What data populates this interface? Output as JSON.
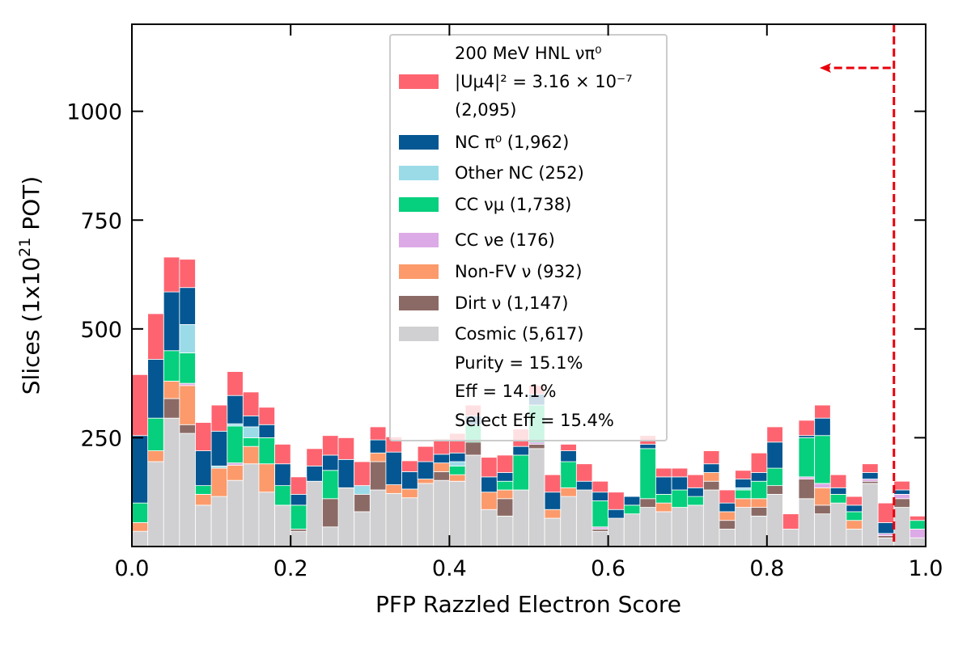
{
  "chart_data": {
    "type": "bar",
    "stacked": true,
    "histogram": true,
    "xlabel": "PFP Razzled Electron Score",
    "ylabel_parts": [
      "Slices (1x10",
      "21",
      " POT)"
    ],
    "xlim": [
      0.0,
      1.0
    ],
    "ylim": [
      0,
      1200
    ],
    "x_ticks": [
      0.0,
      0.2,
      0.4,
      0.6,
      0.8,
      1.0
    ],
    "x_tick_labels": [
      "0.0",
      "0.2",
      "0.4",
      "0.6",
      "0.8",
      "1.0"
    ],
    "y_ticks": [
      250,
      500,
      750,
      1000
    ],
    "y_tick_labels": [
      "250",
      "500",
      "750",
      "1000"
    ],
    "bin_edges": [
      0.0,
      0.02,
      0.04,
      0.06,
      0.08,
      0.1,
      0.12,
      0.14,
      0.16,
      0.18,
      0.2,
      0.22,
      0.24,
      0.26,
      0.28,
      0.3,
      0.32,
      0.34,
      0.36,
      0.38,
      0.4,
      0.42,
      0.44,
      0.46,
      0.48,
      0.5,
      0.52,
      0.54,
      0.56,
      0.58,
      0.6,
      0.62,
      0.64,
      0.66,
      0.68,
      0.7,
      0.72,
      0.74,
      0.76,
      0.78,
      0.8,
      0.82,
      0.84,
      0.86,
      0.88,
      0.9,
      0.92,
      0.94,
      0.96,
      0.98,
      1.0
    ],
    "series": [
      {
        "name": "Cosmic (5,617)",
        "color": "#d0d0d2",
        "values": [
          35,
          195,
          295,
          260,
          95,
          115,
          152,
          190,
          125,
          95,
          35,
          150,
          45,
          135,
          80,
          130,
          122,
          112,
          145,
          152,
          150,
          210,
          85,
          70,
          130,
          225,
          65,
          115,
          130,
          35,
          65,
          75,
          90,
          80,
          90,
          95,
          130,
          40,
          90,
          70,
          120,
          40,
          110,
          75,
          100,
          40,
          145,
          20,
          90,
          20
        ]
      },
      {
        "name": "Dirt ν (1,147)",
        "color": "#8b6a65",
        "values": [
          0,
          0,
          45,
          20,
          0,
          0,
          0,
          0,
          0,
          0,
          5,
          0,
          65,
          0,
          40,
          65,
          0,
          0,
          0,
          20,
          0,
          30,
          0,
          40,
          0,
          10,
          0,
          0,
          0,
          5,
          0,
          0,
          20,
          0,
          0,
          0,
          20,
          20,
          0,
          20,
          20,
          0,
          45,
          20,
          0,
          0,
          5,
          5,
          20,
          0
        ]
      },
      {
        "name": "Non-FV ν (932)",
        "color": "#fc9a6b",
        "values": [
          20,
          25,
          40,
          90,
          25,
          65,
          35,
          40,
          65,
          0,
          0,
          0,
          0,
          0,
          0,
          20,
          20,
          20,
          10,
          20,
          15,
          0,
          40,
          20,
          0,
          0,
          20,
          20,
          0,
          0,
          0,
          0,
          0,
          20,
          0,
          0,
          20,
          20,
          20,
          20,
          0,
          0,
          0,
          40,
          0,
          20,
          0,
          0,
          0,
          0
        ]
      },
      {
        "name": "CC νe (176)",
        "color": "#dcaae6",
        "values": [
          0,
          0,
          0,
          5,
          0,
          0,
          5,
          0,
          0,
          0,
          0,
          0,
          0,
          0,
          0,
          0,
          0,
          0,
          0,
          0,
          0,
          0,
          0,
          0,
          0,
          5,
          0,
          0,
          0,
          5,
          0,
          0,
          0,
          0,
          0,
          0,
          0,
          0,
          0,
          0,
          0,
          0,
          5,
          10,
          0,
          0,
          5,
          5,
          10,
          20
        ]
      },
      {
        "name": "CC νμ (1,738)",
        "color": "#06d07d",
        "values": [
          45,
          75,
          70,
          70,
          20,
          0,
          85,
          20,
          60,
          45,
          55,
          0,
          65,
          0,
          0,
          0,
          0,
          0,
          0,
          0,
          20,
          40,
          0,
          20,
          80,
          85,
          0,
          60,
          0,
          60,
          0,
          20,
          115,
          20,
          40,
          20,
          0,
          0,
          20,
          40,
          40,
          0,
          90,
          110,
          20,
          20,
          0,
          0,
          0,
          20
        ]
      },
      {
        "name": "Other NC (252)",
        "color": "#9bdbe8",
        "values": [
          0,
          0,
          0,
          65,
          0,
          5,
          5,
          25,
          0,
          0,
          0,
          0,
          0,
          0,
          20,
          0,
          0,
          0,
          0,
          0,
          10,
          0,
          0,
          0,
          0,
          0,
          0,
          0,
          0,
          0,
          0,
          0,
          0,
          0,
          0,
          0,
          0,
          0,
          5,
          0,
          0,
          0,
          0,
          0,
          0,
          0,
          0,
          0,
          0,
          0
        ]
      },
      {
        "name": "NC π0 (1,962)",
        "color": "#045792",
        "values": [
          155,
          135,
          135,
          85,
          80,
          80,
          65,
          25,
          30,
          50,
          25,
          35,
          35,
          65,
          0,
          30,
          75,
          40,
          40,
          20,
          20,
          20,
          35,
          20,
          20,
          25,
          40,
          25,
          20,
          20,
          20,
          20,
          10,
          40,
          30,
          20,
          20,
          20,
          20,
          20,
          60,
          0,
          5,
          40,
          15,
          15,
          15,
          25,
          10,
          0
        ]
      },
      {
        "name": "200 MeV HNL νπ0 (2,095)",
        "color": "#fe6470",
        "values": [
          140,
          105,
          80,
          65,
          65,
          60,
          55,
          55,
          40,
          45,
          40,
          40,
          45,
          50,
          55,
          30,
          35,
          25,
          35,
          35,
          45,
          25,
          45,
          40,
          40,
          20,
          40,
          15,
          40,
          25,
          40,
          0,
          20,
          20,
          20,
          30,
          30,
          30,
          20,
          45,
          35,
          35,
          35,
          30,
          30,
          20,
          20,
          45,
          20,
          10
        ]
      }
    ],
    "cut_line": {
      "x": 0.96,
      "direction": "left",
      "color": "#e8000b"
    },
    "legend": {
      "placement": "top-center",
      "hnl_lines": [
        "200 MeV HNL νπ⁰",
        "|Uμ4|² = 3.16 × 10⁻⁷",
        " (2,095)"
      ],
      "entries": [
        {
          "label": "NC π⁰ (1,962)",
          "color": "#045792"
        },
        {
          "label": "Other NC (252)",
          "color": "#9bdbe8"
        },
        {
          "label": "CC νμ (1,738)",
          "color": "#06d07d"
        },
        {
          "label": "CC νe (176)",
          "color": "#dcaae6"
        },
        {
          "label": "Non-FV ν (932)",
          "color": "#fc9a6b"
        },
        {
          "label": "Dirt ν (1,147)",
          "color": "#8b6a65"
        },
        {
          "label": "Cosmic (5,617)",
          "color": "#d0d0d2"
        }
      ],
      "stats": [
        "Purity = 15.1%",
        "Eff = 14.1%",
        "Select Eff = 15.4%"
      ]
    },
    "grid": false
  }
}
